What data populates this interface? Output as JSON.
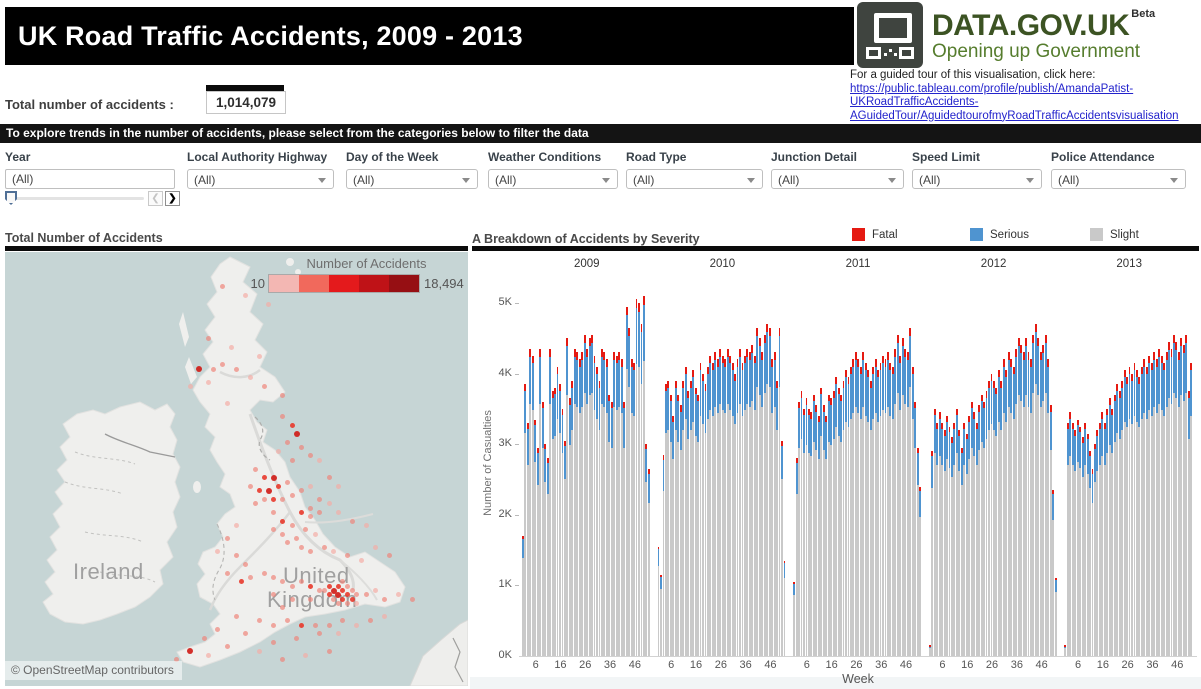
{
  "header": {
    "title": "UK Road Traffic Accidents, 2009 - 2013",
    "brand": {
      "name": "DATA.GOV.UK",
      "beta": "Beta",
      "tagline": "Opening up Government"
    },
    "tour": {
      "intro": "For a guided tour of this visualisation, click here:",
      "link_lines": [
        "https://public.tableau.com/profile/publish/AmandaPatist-",
        "UKRoadTrafficAccidents-",
        "AGuidedTour/AguidedtourofmyRoadTrafficAccidentsvisualisation"
      ]
    }
  },
  "totals": {
    "label": "Total number of accidents :",
    "value": "1,014,079"
  },
  "instruction": "To explore trends in the number of accidents, please select from the categories below to filter the data",
  "filters": {
    "items": [
      {
        "label": "Year",
        "value": "(All)"
      },
      {
        "label": "Local Authority Highway",
        "value": "(All)"
      },
      {
        "label": "Day of the Week",
        "value": "(All)"
      },
      {
        "label": "Weather Conditions",
        "value": "(All)"
      },
      {
        "label": "Road Type",
        "value": "(All)"
      },
      {
        "label": "Junction Detail",
        "value": "(All)"
      },
      {
        "label": "Speed Limit",
        "value": "(All)"
      },
      {
        "label": "Police Attendance",
        "value": "(All)"
      }
    ]
  },
  "map": {
    "title": "Total Number of Accidents",
    "legend": {
      "title": "Number of Accidents",
      "min": "10",
      "max": "18,494",
      "colors": [
        "#f3b7b3",
        "#f1695c",
        "#e41a1c",
        "#bf1217",
        "#960f13"
      ]
    },
    "place_labels": {
      "ireland": "Ireland",
      "uk_line1": "United",
      "uk_line2": "Kingdom"
    },
    "attribution": "© OpenStreetMap contributors",
    "points": [
      [
        47,
        8,
        1
      ],
      [
        52,
        10,
        0
      ],
      [
        57,
        12,
        0
      ],
      [
        44,
        20,
        1
      ],
      [
        49,
        22,
        0
      ],
      [
        55,
        24,
        0
      ],
      [
        42,
        27,
        3
      ],
      [
        45,
        27,
        1
      ],
      [
        47,
        26,
        1
      ],
      [
        50,
        27,
        1
      ],
      [
        44,
        30,
        0
      ],
      [
        53,
        29,
        0
      ],
      [
        40,
        31,
        0
      ],
      [
        48,
        35,
        0
      ],
      [
        56,
        31,
        1
      ],
      [
        60,
        33,
        1
      ],
      [
        60,
        38,
        1
      ],
      [
        62,
        40,
        2
      ],
      [
        63,
        42,
        3
      ],
      [
        61,
        44,
        1
      ],
      [
        64,
        45,
        1
      ],
      [
        59,
        46,
        0
      ],
      [
        66,
        47,
        1
      ],
      [
        62,
        48,
        1
      ],
      [
        68,
        48,
        0
      ],
      [
        54,
        50,
        1
      ],
      [
        56,
        52,
        2
      ],
      [
        58,
        52,
        3
      ],
      [
        53,
        54,
        1
      ],
      [
        55,
        55,
        2
      ],
      [
        57,
        55,
        3
      ],
      [
        59,
        54,
        2
      ],
      [
        61,
        53,
        1
      ],
      [
        56,
        57,
        1
      ],
      [
        58,
        57,
        2
      ],
      [
        54,
        58,
        1
      ],
      [
        60,
        57,
        1
      ],
      [
        62,
        56,
        1
      ],
      [
        64,
        55,
        1
      ],
      [
        66,
        54,
        0
      ],
      [
        70,
        52,
        1
      ],
      [
        72,
        54,
        0
      ],
      [
        68,
        57,
        1
      ],
      [
        70,
        58,
        0
      ],
      [
        66,
        59,
        1
      ],
      [
        64,
        60,
        2
      ],
      [
        66,
        61,
        1
      ],
      [
        68,
        60,
        1
      ],
      [
        72,
        60,
        0
      ],
      [
        75,
        62,
        1
      ],
      [
        78,
        63,
        0
      ],
      [
        58,
        60,
        1
      ],
      [
        60,
        62,
        2
      ],
      [
        62,
        63,
        1
      ],
      [
        58,
        64,
        1
      ],
      [
        60,
        65,
        1
      ],
      [
        63,
        66,
        1
      ],
      [
        65,
        64,
        1
      ],
      [
        67,
        65,
        0
      ],
      [
        61,
        67,
        1
      ],
      [
        64,
        68,
        1
      ],
      [
        66,
        69,
        1
      ],
      [
        69,
        68,
        1
      ],
      [
        71,
        69,
        0
      ],
      [
        74,
        70,
        1
      ],
      [
        77,
        71,
        0
      ],
      [
        80,
        68,
        0
      ],
      [
        83,
        70,
        1
      ],
      [
        50,
        63,
        0
      ],
      [
        48,
        66,
        1
      ],
      [
        46,
        69,
        0
      ],
      [
        50,
        70,
        1
      ],
      [
        52,
        72,
        1
      ],
      [
        48,
        74,
        1
      ],
      [
        51,
        76,
        2
      ],
      [
        53,
        75,
        1
      ],
      [
        56,
        74,
        1
      ],
      [
        58,
        75,
        1
      ],
      [
        60,
        76,
        1
      ],
      [
        62,
        77,
        1
      ],
      [
        64,
        76,
        1
      ],
      [
        66,
        77,
        2
      ],
      [
        68,
        78,
        1
      ],
      [
        58,
        79,
        1
      ],
      [
        62,
        80,
        1
      ],
      [
        66,
        80,
        1
      ],
      [
        60,
        82,
        1
      ],
      [
        70,
        77,
        2
      ],
      [
        71,
        78,
        3
      ],
      [
        72,
        77,
        2
      ],
      [
        73,
        78,
        2
      ],
      [
        74,
        77,
        1
      ],
      [
        72,
        79,
        3
      ],
      [
        73,
        80,
        2
      ],
      [
        70,
        79,
        2
      ],
      [
        71,
        80,
        1
      ],
      [
        74,
        79,
        2
      ],
      [
        75,
        78,
        1
      ],
      [
        76,
        79,
        1
      ],
      [
        73,
        76,
        1
      ],
      [
        75,
        80,
        2
      ],
      [
        69,
        78,
        1
      ],
      [
        72,
        81,
        1
      ],
      [
        74,
        81,
        1
      ],
      [
        76,
        81,
        0
      ],
      [
        78,
        79,
        1
      ],
      [
        80,
        78,
        0
      ],
      [
        82,
        80,
        1
      ],
      [
        85,
        79,
        0
      ],
      [
        88,
        80,
        1
      ],
      [
        55,
        85,
        1
      ],
      [
        58,
        86,
        1
      ],
      [
        61,
        85,
        1
      ],
      [
        64,
        86,
        2
      ],
      [
        67,
        86,
        1
      ],
      [
        70,
        86,
        1
      ],
      [
        73,
        85,
        1
      ],
      [
        76,
        86,
        0
      ],
      [
        79,
        85,
        1
      ],
      [
        82,
        84,
        0
      ],
      [
        68,
        88,
        1
      ],
      [
        72,
        88,
        0
      ],
      [
        63,
        89,
        1
      ],
      [
        58,
        90,
        1
      ],
      [
        50,
        84,
        1
      ],
      [
        46,
        87,
        1
      ],
      [
        43,
        89,
        1
      ],
      [
        40,
        92,
        3
      ],
      [
        37,
        94,
        1
      ],
      [
        44,
        93,
        0
      ],
      [
        48,
        91,
        1
      ],
      [
        52,
        88,
        1
      ],
      [
        55,
        92,
        0
      ],
      [
        60,
        94,
        1
      ],
      [
        65,
        93,
        0
      ],
      [
        70,
        92,
        1
      ]
    ]
  },
  "chart_data": {
    "type": "bar",
    "stacked": true,
    "title": "A Breakdown of Accidents by Severity",
    "xlabel": "Week",
    "ylabel": "Number of Casualties",
    "ylim": [
      0,
      5260
    ],
    "yticks": [
      "0K",
      "1K",
      "2K",
      "3K",
      "4K",
      "5K"
    ],
    "week_ticks": [
      6,
      16,
      26,
      36,
      46
    ],
    "legend": [
      {
        "label": "Fatal",
        "color": "#e51a12"
      },
      {
        "label": "Serious",
        "color": "#4f94d0"
      },
      {
        "label": "Slight",
        "color": "#c9c9c9"
      }
    ],
    "severity_split_estimate": {
      "fatal": 0.025,
      "serious": 0.155,
      "slight": 0.82
    },
    "years": [
      {
        "label": "2009",
        "weekly_total_casualties": [
          1700,
          3850,
          3300,
          4350,
          4250,
          3350,
          2950,
          4350,
          3600,
          3000,
          2800,
          4350,
          3750,
          3800,
          4100,
          3850,
          3500,
          3050,
          4500,
          3650,
          3900,
          4350,
          4300,
          4200,
          4300,
          4550,
          4350,
          4500,
          4550,
          4250,
          4100,
          3900,
          4350,
          4300,
          4200,
          3700,
          3600,
          4300,
          4250,
          4300,
          4200,
          3600,
          4950,
          4650,
          4200,
          4150,
          5050,
          5000,
          4700,
          5100,
          3000,
          2650
        ]
      },
      {
        "label": "2010",
        "weekly_total_casualties": [
          1550,
          1150,
          2850,
          3850,
          3900,
          3700,
          3400,
          3900,
          3700,
          3550,
          3900,
          4100,
          3750,
          3900,
          4050,
          3800,
          3700,
          4150,
          4000,
          3850,
          4100,
          4250,
          4150,
          4300,
          4200,
          4350,
          4250,
          4200,
          4350,
          4250,
          4150,
          4000,
          4200,
          4350,
          4150,
          4250,
          4350,
          4300,
          4400,
          4250,
          4650,
          4500,
          4300,
          4550,
          4700,
          4650,
          4200,
          4300,
          3900,
          4650,
          3050,
          1350
        ]
      },
      {
        "label": "2011",
        "weekly_total_casualties": [
          1050,
          2800,
          3600,
          3750,
          3500,
          3650,
          3500,
          3450,
          3700,
          3550,
          3400,
          3800,
          3550,
          3400,
          3700,
          3650,
          3750,
          3950,
          3800,
          3700,
          3900,
          4050,
          3950,
          4100,
          4200,
          4300,
          4200,
          4100,
          4300,
          4150,
          4050,
          3900,
          4100,
          4200,
          4050,
          4150,
          4250,
          4200,
          4300,
          4150,
          4100,
          4350,
          4550,
          4250,
          4500,
          4350,
          4300,
          4650,
          4100,
          3600,
          2950,
          2400
        ]
      },
      {
        "label": "2012",
        "weekly_total_casualties": [
          150,
          2900,
          3500,
          3300,
          3450,
          3300,
          3200,
          3400,
          3250,
          3100,
          3300,
          3500,
          3200,
          2950,
          3300,
          3150,
          3400,
          3600,
          3450,
          3300,
          3550,
          3700,
          3600,
          3750,
          3900,
          4000,
          3900,
          3800,
          4050,
          3900,
          4200,
          4050,
          4300,
          4200,
          4100,
          4350,
          4500,
          4400,
          4300,
          4500,
          4300,
          4200,
          4550,
          4700,
          4500,
          4300,
          4400,
          4550,
          4200,
          3550,
          2350,
          1100
        ]
      },
      {
        "label": "2013",
        "weekly_total_casualties": [
          150,
          3300,
          3450,
          3300,
          3200,
          3350,
          3250,
          3100,
          3300,
          3150,
          2900,
          2650,
          3000,
          3200,
          3300,
          3450,
          3300,
          3500,
          3650,
          3500,
          3700,
          3850,
          3750,
          3900,
          4050,
          3950,
          4100,
          4000,
          4150,
          4050,
          3950,
          4100,
          4200,
          4100,
          4250,
          4150,
          4300,
          4200,
          4350,
          4250,
          4150,
          4300,
          4450,
          4350,
          4550,
          4450,
          4300,
          4500,
          4400,
          4550,
          3750,
          4150
        ]
      }
    ]
  }
}
